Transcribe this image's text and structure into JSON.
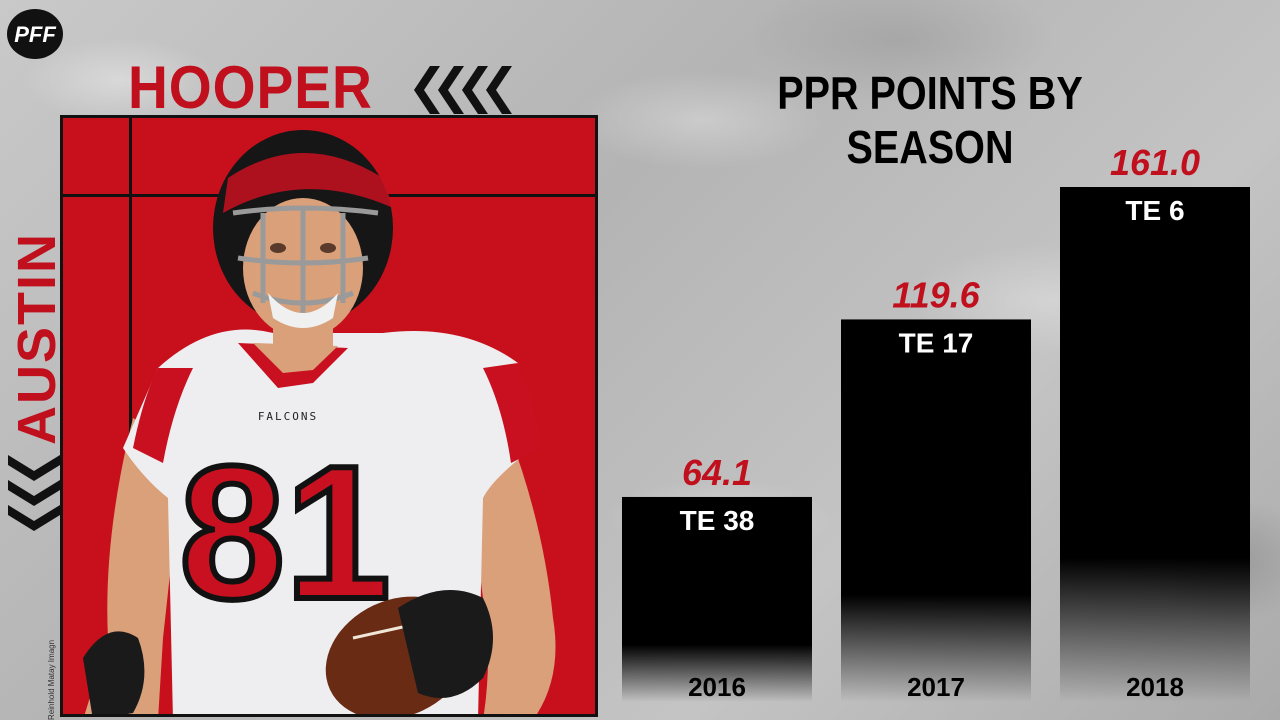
{
  "brand": {
    "logo_text": "PFF"
  },
  "player": {
    "first_name": "AUSTIN",
    "last_name": "HOOPER",
    "jersey_number": "81",
    "jersey_team": "FALCONS",
    "photo_credit": "Reinhold Matay Imagn"
  },
  "colors": {
    "accent_red": "#c8101d",
    "bar_color": "#000000",
    "value_color": "#c0101e",
    "rank_color": "#ffffff"
  },
  "chart_data": {
    "type": "bar",
    "title": "PPR POINTS BY SEASON",
    "categories": [
      "2016",
      "2017",
      "2018"
    ],
    "values": [
      64.1,
      119.6,
      161.0
    ],
    "value_labels": [
      "64.1",
      "119.6",
      "161.0"
    ],
    "rank_labels": [
      "TE 38",
      "TE 17",
      "TE 6"
    ],
    "xlabel": "",
    "ylabel": "",
    "ylim": [
      0,
      161.0
    ],
    "grid": false,
    "legend": "none"
  }
}
